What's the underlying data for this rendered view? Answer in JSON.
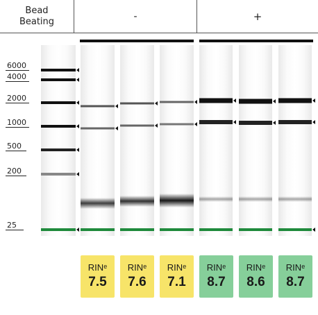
{
  "header": {
    "label_line1": "Bead",
    "label_line2": "Beating",
    "group_neg": "-",
    "group_pos": "+"
  },
  "ladder": {
    "sizes": [
      "6000",
      "4000",
      "2000",
      "1000",
      "500",
      "200",
      "25"
    ]
  },
  "rin": {
    "label": "RIN",
    "sup": "e",
    "values": [
      "7.5",
      "7.6",
      "7.1",
      "8.7",
      "8.6",
      "8.7"
    ],
    "colors": [
      "#f7e469",
      "#f7e469",
      "#f7e469",
      "#86cf9a",
      "#86cf9a",
      "#86cf9a"
    ]
  },
  "colors": {
    "marker_band": "#1f8a3c",
    "band": "#111111",
    "group_bar": "#111111"
  }
}
